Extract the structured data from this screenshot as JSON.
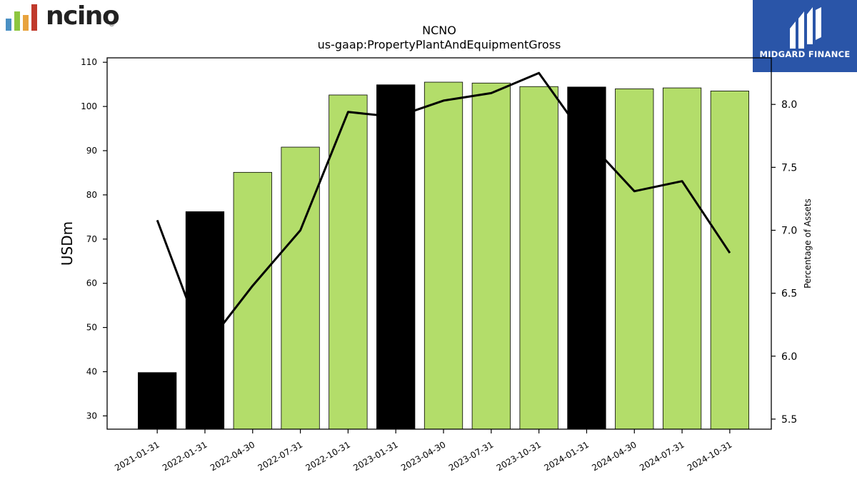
{
  "logos": {
    "left": {
      "text": "ncino",
      "mark": "®",
      "bar_colors": [
        "#4a90c4",
        "#8dc63f",
        "#e8a33d",
        "#c0392b"
      ]
    },
    "right": {
      "text": "MIDGARD FINANCE",
      "background": "#2a55a8"
    }
  },
  "chart_data": {
    "type": "bar",
    "title": "NCNO",
    "subtitle": "us-gaap:PropertyPlantAndEquipmentGross",
    "ylabel": "USDm",
    "y2label": "Percentage of Assets",
    "categories": [
      "2021-01-31",
      "2022-01-31",
      "2022-04-30",
      "2022-07-31",
      "2022-10-31",
      "2023-01-31",
      "2023-04-30",
      "2023-07-31",
      "2023-10-31",
      "2024-01-31",
      "2024-04-30",
      "2024-07-31",
      "2024-10-31"
    ],
    "series": [
      {
        "type": "bar",
        "values": [
          39.8,
          76.2,
          85.1,
          90.8,
          102.6,
          104.9,
          105.5,
          105.3,
          104.5,
          104.4,
          104.0,
          104.2,
          103.5
        ]
      },
      {
        "type": "line",
        "axis": "right",
        "values": [
          7.08,
          6.07,
          6.56,
          7.0,
          7.94,
          7.9,
          8.03,
          8.09,
          8.25,
          7.72,
          7.31,
          7.39,
          6.82
        ]
      }
    ],
    "bar_colors": [
      "#000000",
      "#000000",
      "#b3dd6a",
      "#b3dd6a",
      "#b3dd6a",
      "#000000",
      "#b3dd6a",
      "#b3dd6a",
      "#b3dd6a",
      "#000000",
      "#b3dd6a",
      "#b3dd6a",
      "#b3dd6a"
    ],
    "line_color": "#000000",
    "yticks": [
      30,
      40,
      50,
      60,
      70,
      80,
      90,
      100,
      110
    ],
    "ylim": [
      27,
      111
    ],
    "y2ticks": [
      5.5,
      6.0,
      6.5,
      7.0,
      7.5,
      8.0
    ],
    "y2ticklabels": [
      "5.5",
      "6.0",
      "6.5",
      "7.0",
      "7.5",
      "8.0"
    ],
    "y2lim": [
      5.42,
      8.37
    ],
    "grid": false
  }
}
